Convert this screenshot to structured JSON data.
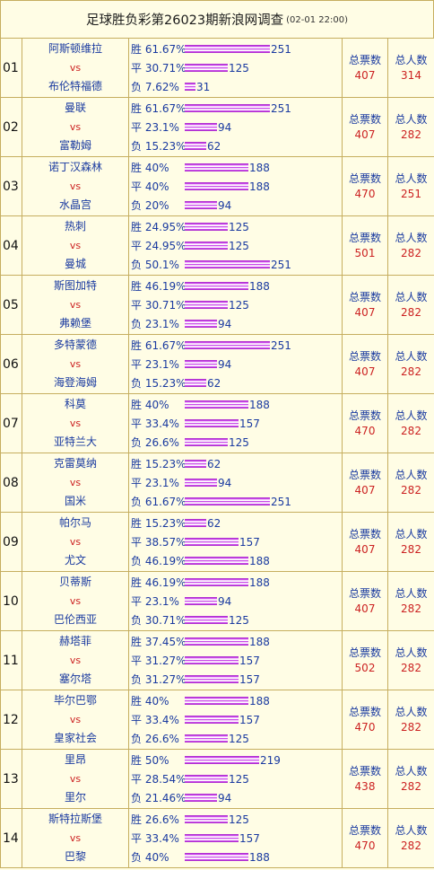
{
  "header": {
    "title": "足球胜负彩第26023期新浪网调查",
    "time": "(02-01 22:00)"
  },
  "labels": {
    "total_votes": "总票数",
    "total_people": "总人数"
  },
  "rows": [
    {
      "no": "01",
      "home": "阿斯顿维拉",
      "vs": "vs",
      "away": "布伦特福德",
      "win": {
        "l": "胜 61.67%",
        "c": 251
      },
      "draw": {
        "l": "平 30.71%",
        "c": 125
      },
      "loss": {
        "l": "负  7.62%",
        "c": 31
      },
      "votes": "407",
      "people": "314"
    },
    {
      "no": "02",
      "home": "曼联",
      "vs": "vs",
      "away": "富勒姆",
      "win": {
        "l": "胜 61.67%",
        "c": 251
      },
      "draw": {
        "l": "平  23.1%",
        "c": 94
      },
      "loss": {
        "l": "负 15.23%",
        "c": 62
      },
      "votes": "407",
      "people": "282"
    },
    {
      "no": "03",
      "home": "诺丁汉森林",
      "vs": "vs",
      "away": "水晶宫",
      "win": {
        "l": "胜 40%",
        "c": 188
      },
      "draw": {
        "l": "平 40%",
        "c": 188
      },
      "loss": {
        "l": "负 20%",
        "c": 94
      },
      "votes": "470",
      "people": "251"
    },
    {
      "no": "04",
      "home": "热刺",
      "vs": "vs",
      "away": "曼城",
      "win": {
        "l": "胜 24.95%",
        "c": 125
      },
      "draw": {
        "l": "平 24.95%",
        "c": 125
      },
      "loss": {
        "l": "负  50.1%",
        "c": 251
      },
      "votes": "501",
      "people": "282"
    },
    {
      "no": "05",
      "home": "斯图加特",
      "vs": "vs",
      "away": "弗赖堡",
      "win": {
        "l": "胜 46.19%",
        "c": 188
      },
      "draw": {
        "l": "平 30.71%",
        "c": 125
      },
      "loss": {
        "l": "负  23.1%",
        "c": 94
      },
      "votes": "407",
      "people": "282"
    },
    {
      "no": "06",
      "home": "多特蒙德",
      "vs": "vs",
      "away": "海登海姆",
      "win": {
        "l": "胜 61.67%",
        "c": 251
      },
      "draw": {
        "l": "平  23.1%",
        "c": 94
      },
      "loss": {
        "l": "负 15.23%",
        "c": 62
      },
      "votes": "407",
      "people": "282"
    },
    {
      "no": "07",
      "home": "科莫",
      "vs": "vs",
      "away": "亚特兰大",
      "win": {
        "l": "胜   40%",
        "c": 188
      },
      "draw": {
        "l": "平 33.4%",
        "c": 157
      },
      "loss": {
        "l": "负 26.6%",
        "c": 125
      },
      "votes": "470",
      "people": "282"
    },
    {
      "no": "08",
      "home": "克雷莫纳",
      "vs": "vs",
      "away": "国米",
      "win": {
        "l": "胜 15.23%",
        "c": 62
      },
      "draw": {
        "l": "平  23.1%",
        "c": 94
      },
      "loss": {
        "l": "负 61.67%",
        "c": 251
      },
      "votes": "407",
      "people": "282"
    },
    {
      "no": "09",
      "home": "帕尔马",
      "vs": "vs",
      "away": "尤文",
      "win": {
        "l": "胜 15.23%",
        "c": 62
      },
      "draw": {
        "l": "平 38.57%",
        "c": 157
      },
      "loss": {
        "l": "负 46.19%",
        "c": 188
      },
      "votes": "407",
      "people": "282"
    },
    {
      "no": "10",
      "home": "贝蒂斯",
      "vs": "vs",
      "away": "巴伦西亚",
      "win": {
        "l": "胜 46.19%",
        "c": 188
      },
      "draw": {
        "l": "平  23.1%",
        "c": 94
      },
      "loss": {
        "l": "负 30.71%",
        "c": 125
      },
      "votes": "407",
      "people": "282"
    },
    {
      "no": "11",
      "home": "赫塔菲",
      "vs": "vs",
      "away": "塞尔塔",
      "win": {
        "l": "胜 37.45%",
        "c": 188
      },
      "draw": {
        "l": "平 31.27%",
        "c": 157
      },
      "loss": {
        "l": "负 31.27%",
        "c": 157
      },
      "votes": "502",
      "people": "282"
    },
    {
      "no": "12",
      "home": "毕尔巴鄂",
      "vs": "vs",
      "away": "皇家社会",
      "win": {
        "l": "胜   40%",
        "c": 188
      },
      "draw": {
        "l": "平 33.4%",
        "c": 157
      },
      "loss": {
        "l": "负 26.6%",
        "c": 125
      },
      "votes": "470",
      "people": "282"
    },
    {
      "no": "13",
      "home": "里昂",
      "vs": "vs",
      "away": "里尔",
      "win": {
        "l": "胜    50%",
        "c": 219
      },
      "draw": {
        "l": "平 28.54%",
        "c": 125
      },
      "loss": {
        "l": "负 21.46%",
        "c": 94
      },
      "votes": "438",
      "people": "282"
    },
    {
      "no": "14",
      "home": "斯特拉斯堡",
      "vs": "vs",
      "away": "巴黎",
      "win": {
        "l": "胜 26.6%",
        "c": 125
      },
      "draw": {
        "l": "平 33.4%",
        "c": 157
      },
      "loss": {
        "l": "负  40%",
        "c": 188
      },
      "votes": "470",
      "people": "282"
    }
  ]
}
